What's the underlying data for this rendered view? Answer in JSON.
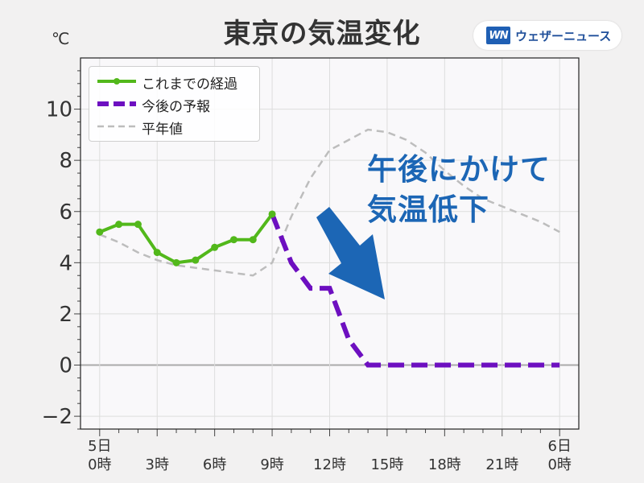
{
  "title": "東京の気温変化",
  "unit_label": "℃",
  "brand": {
    "logo": "WN",
    "name": "ウェザーニュース"
  },
  "annotation": {
    "line1": "午後にかけて",
    "line2": "気温低下"
  },
  "colors": {
    "observed": "#52b81b",
    "forecast": "#6d0fc0",
    "normal": "#bdbdbd",
    "arrow": "#1c66b5",
    "plot_bg": "#f9f8fa",
    "grid": "#dddddd",
    "zero_line": "#aaaaaa"
  },
  "legend": [
    {
      "label": "これまでの経過",
      "series": "observed"
    },
    {
      "label": "今後の予報",
      "series": "forecast"
    },
    {
      "label": "平年値",
      "series": "normal"
    }
  ],
  "chart_data": {
    "type": "line",
    "title": "東京の気温変化",
    "xlabel": "",
    "ylabel": "℃",
    "xlim": [
      -1,
      25
    ],
    "ylim": [
      -2.5,
      12
    ],
    "grid": true,
    "legend_position": "top-left",
    "y_ticks": [
      -2,
      0,
      2,
      4,
      6,
      8,
      10
    ],
    "y_tick_labels": [
      "−2",
      "0",
      "2",
      "4",
      "6",
      "8",
      "10"
    ],
    "x_ticks": [
      0,
      3,
      6,
      9,
      12,
      15,
      18,
      21,
      24
    ],
    "x_tick_labels": [
      [
        "5日",
        "0時"
      ],
      [
        "",
        "3時"
      ],
      [
        "",
        "6時"
      ],
      [
        "",
        "9時"
      ],
      [
        "",
        "12時"
      ],
      [
        "",
        "15時"
      ],
      [
        "",
        "18時"
      ],
      [
        "",
        "21時"
      ],
      [
        "6日",
        "0時"
      ]
    ],
    "series": [
      {
        "name": "これまでの経過",
        "style": "solid-markers",
        "x": [
          0,
          1,
          2,
          3,
          4,
          5,
          6,
          7,
          8,
          9
        ],
        "y": [
          5.2,
          5.5,
          5.5,
          4.4,
          4.0,
          4.1,
          4.6,
          4.9,
          4.9,
          5.9
        ]
      },
      {
        "name": "今後の予報",
        "style": "dashed-thick",
        "x": [
          9,
          10,
          11,
          12,
          13,
          14,
          15,
          16,
          17,
          18,
          19,
          20,
          21,
          22,
          23,
          24
        ],
        "y": [
          5.9,
          4.0,
          3.0,
          3.0,
          1.0,
          0,
          0,
          0,
          0,
          0,
          0,
          0,
          0,
          0,
          0,
          0
        ]
      },
      {
        "name": "平年値",
        "style": "dashed-thin",
        "x": [
          0,
          1,
          2,
          3,
          4,
          5,
          6,
          7,
          8,
          9,
          10,
          11,
          12,
          13,
          14,
          15,
          16,
          17,
          18,
          19,
          20,
          21,
          22,
          23,
          24
        ],
        "y": [
          5.1,
          4.8,
          4.4,
          4.1,
          3.9,
          3.8,
          3.7,
          3.6,
          3.5,
          4.0,
          5.8,
          7.3,
          8.4,
          8.8,
          9.2,
          9.1,
          8.8,
          8.3,
          7.6,
          7.0,
          6.5,
          6.2,
          5.9,
          5.6,
          5.2
        ]
      }
    ]
  }
}
